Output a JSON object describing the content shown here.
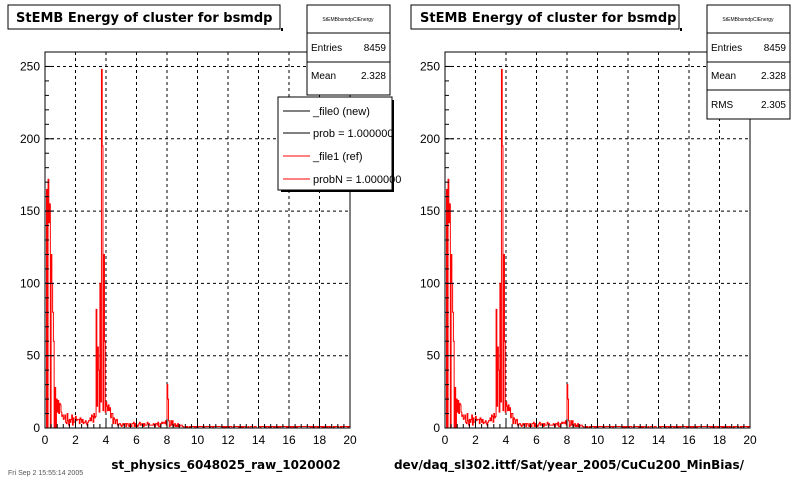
{
  "chart_data": [
    {
      "type": "bar",
      "title": "StEMB Energy of cluster for bsmdp",
      "xlabel": "st_physics_6048025_raw_1020002",
      "ylabel": "",
      "xlim": [
        0,
        20
      ],
      "ylim": [
        0,
        260
      ],
      "xticks": [
        "0",
        "2",
        "4",
        "6",
        "8",
        "10",
        "12",
        "14",
        "16",
        "18",
        "20"
      ],
      "yticks": [
        "0",
        "50",
        "100",
        "150",
        "200",
        "250"
      ],
      "grid": true,
      "bin_width": 0.05,
      "stats": {
        "name": "StEMBbsmdpClEnergy",
        "entries_label": "Entries",
        "entries": "8459",
        "mean_label": "Mean",
        "mean": "2.328"
      },
      "legend": {
        "position": "top-right",
        "entries": [
          "_file0 (new)",
          "prob = 1.000000",
          "_file1 (ref)",
          "probN = 1.000000"
        ]
      },
      "series_color": "#ff0000",
      "peaks": [
        {
          "x": 0.1,
          "y": 173
        },
        {
          "x": 0.15,
          "y": 165
        },
        {
          "x": 0.2,
          "y": 172
        },
        {
          "x": 0.25,
          "y": 150
        },
        {
          "x": 0.3,
          "y": 142
        },
        {
          "x": 0.35,
          "y": 155
        },
        {
          "x": 0.4,
          "y": 120
        },
        {
          "x": 0.45,
          "y": 100
        },
        {
          "x": 0.5,
          "y": 80
        },
        {
          "x": 0.55,
          "y": 135
        },
        {
          "x": 0.6,
          "y": 60
        },
        {
          "x": 0.65,
          "y": 38
        },
        {
          "x": 0.7,
          "y": 28
        },
        {
          "x": 0.75,
          "y": 20
        },
        {
          "x": 3.35,
          "y": 82
        },
        {
          "x": 3.45,
          "y": 56
        },
        {
          "x": 3.55,
          "y": 40
        },
        {
          "x": 3.6,
          "y": 100
        },
        {
          "x": 3.7,
          "y": 248
        },
        {
          "x": 3.75,
          "y": 240
        },
        {
          "x": 3.8,
          "y": 195
        },
        {
          "x": 3.85,
          "y": 120
        },
        {
          "x": 3.9,
          "y": 60
        },
        {
          "x": 8.0,
          "y": 30
        },
        {
          "x": 8.05,
          "y": 20
        }
      ]
    },
    {
      "type": "bar",
      "title": "StEMB Energy of cluster for bsmdp",
      "xlabel": "dev/daq_sl302.ittf/Sat/year_2005/CuCu200_MinBias/",
      "ylabel": "",
      "xlim": [
        0,
        20
      ],
      "ylim": [
        0,
        260
      ],
      "xticks": [
        "0",
        "2",
        "4",
        "6",
        "8",
        "10",
        "12",
        "14",
        "16",
        "18",
        "20"
      ],
      "yticks": [
        "0",
        "50",
        "100",
        "150",
        "200",
        "250"
      ],
      "grid": true,
      "bin_width": 0.05,
      "stats": {
        "name": "StEMBbsmdpClEnergy",
        "entries_label": "Entries",
        "entries": "8459",
        "mean_label": "Mean",
        "mean": "2.328",
        "rms_label": "RMS",
        "rms": "2.305"
      },
      "series_color": "#ff0000",
      "peaks": [
        {
          "x": 0.1,
          "y": 173
        },
        {
          "x": 0.15,
          "y": 165
        },
        {
          "x": 0.2,
          "y": 172
        },
        {
          "x": 0.25,
          "y": 150
        },
        {
          "x": 0.3,
          "y": 142
        },
        {
          "x": 0.35,
          "y": 155
        },
        {
          "x": 0.4,
          "y": 120
        },
        {
          "x": 0.45,
          "y": 100
        },
        {
          "x": 0.5,
          "y": 80
        },
        {
          "x": 0.55,
          "y": 135
        },
        {
          "x": 0.6,
          "y": 60
        },
        {
          "x": 0.65,
          "y": 38
        },
        {
          "x": 0.7,
          "y": 28
        },
        {
          "x": 0.75,
          "y": 20
        },
        {
          "x": 3.35,
          "y": 82
        },
        {
          "x": 3.45,
          "y": 56
        },
        {
          "x": 3.55,
          "y": 40
        },
        {
          "x": 3.6,
          "y": 100
        },
        {
          "x": 3.7,
          "y": 248
        },
        {
          "x": 3.75,
          "y": 240
        },
        {
          "x": 3.8,
          "y": 195
        },
        {
          "x": 3.85,
          "y": 120
        },
        {
          "x": 3.9,
          "y": 60
        },
        {
          "x": 8.0,
          "y": 30
        },
        {
          "x": 8.05,
          "y": 20
        }
      ]
    }
  ],
  "footer": {
    "timestamp": "Fri Sep 2 15:55:14 2005"
  }
}
